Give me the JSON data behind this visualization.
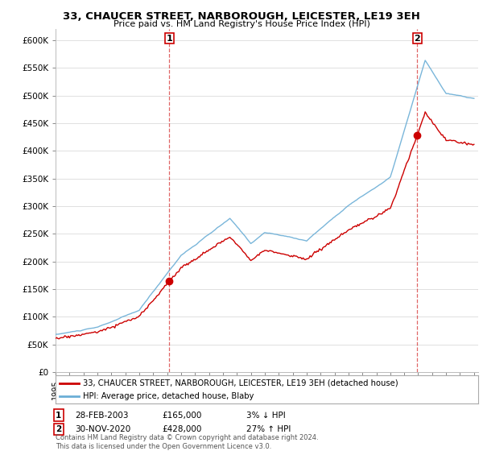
{
  "title": "33, CHAUCER STREET, NARBOROUGH, LEICESTER, LE19 3EH",
  "subtitle": "Price paid vs. HM Land Registry's House Price Index (HPI)",
  "legend_line1": "33, CHAUCER STREET, NARBOROUGH, LEICESTER, LE19 3EH (detached house)",
  "legend_line2": "HPI: Average price, detached house, Blaby",
  "sale1_date": "28-FEB-2003",
  "sale1_price": "£165,000",
  "sale1_hpi": "3% ↓ HPI",
  "sale2_date": "30-NOV-2020",
  "sale2_price": "£428,000",
  "sale2_hpi": "27% ↑ HPI",
  "footer": "Contains HM Land Registry data © Crown copyright and database right 2024.\nThis data is licensed under the Open Government Licence v3.0.",
  "hpi_color": "#6baed6",
  "price_color": "#cc0000",
  "ylim": [
    0,
    620000
  ],
  "yticks": [
    0,
    50000,
    100000,
    150000,
    200000,
    250000,
    300000,
    350000,
    400000,
    450000,
    500000,
    550000,
    600000
  ],
  "sale1_year": 2003.15,
  "sale2_year": 2020.92,
  "sale1_price_val": 165000,
  "sale2_price_val": 428000,
  "background_color": "#ffffff",
  "grid_color": "#e0e0e0"
}
